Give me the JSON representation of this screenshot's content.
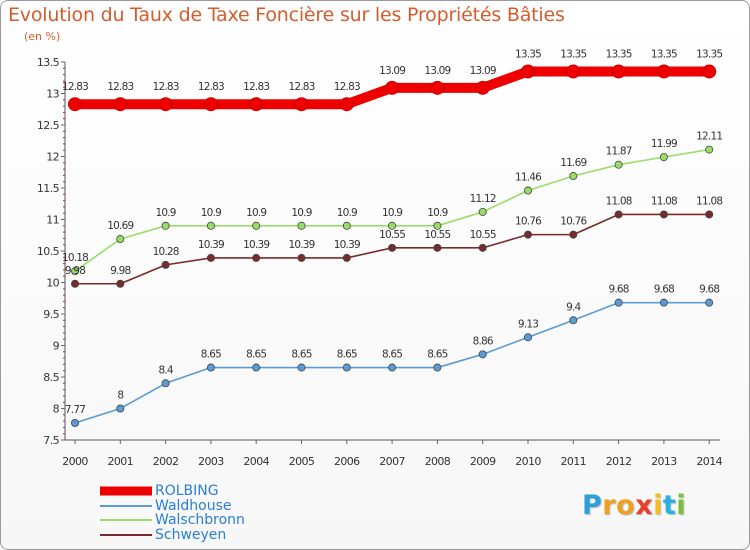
{
  "chart_data": {
    "type": "line",
    "title": "Evolution du Taux de Taxe Foncière sur les Propriétés Bâties",
    "subtitle": "(en %)",
    "x": [
      "2000",
      "2001",
      "2002",
      "2003",
      "2004",
      "2005",
      "2006",
      "2007",
      "2008",
      "2009",
      "2010",
      "2011",
      "2012",
      "2013",
      "2014"
    ],
    "ylim": [
      7.5,
      13.5
    ],
    "yticks": [
      "7.5",
      "8",
      "8.5",
      "9",
      "9.5",
      "10",
      "10.5",
      "11",
      "11.5",
      "12",
      "12.5",
      "13",
      "13.5"
    ],
    "grid": false,
    "legend_position": "bottom-left",
    "series": [
      {
        "name": "ROLBING",
        "color": "#ee0000",
        "values": [
          12.83,
          12.83,
          12.83,
          12.83,
          12.83,
          12.83,
          12.83,
          13.09,
          13.09,
          13.09,
          13.35,
          13.35,
          13.35,
          13.35,
          13.35
        ],
        "labels": [
          "12.83",
          "12.83",
          "12.83",
          "12.83",
          "12.83",
          "12.83",
          "12.83",
          "13.09",
          "13.09",
          "13.09",
          "13.35",
          "13.35",
          "13.35",
          "13.35",
          "13.35"
        ]
      },
      {
        "name": "Waldhouse",
        "color": "#5b9bd5",
        "values": [
          7.77,
          8,
          8.4,
          8.65,
          8.65,
          8.65,
          8.65,
          8.65,
          8.65,
          8.86,
          9.13,
          9.4,
          9.68,
          9.68,
          9.68
        ],
        "labels": [
          "7.77",
          "8",
          "8.4",
          "8.65",
          "8.65",
          "8.65",
          "8.65",
          "8.65",
          "8.65",
          "8.86",
          "9.13",
          "9.4",
          "9.68",
          "9.68",
          "9.68"
        ]
      },
      {
        "name": "Walschbronn",
        "color": "#99dd66",
        "values": [
          10.18,
          10.69,
          10.9,
          10.9,
          10.9,
          10.9,
          10.9,
          10.9,
          10.9,
          11.12,
          11.46,
          11.69,
          11.87,
          11.99,
          12.11
        ],
        "labels": [
          "10.18",
          "10.69",
          "10.9",
          "10.9",
          "10.9",
          "10.9",
          "10.9",
          "10.9",
          "10.9",
          "11.12",
          "11.46",
          "11.69",
          "11.87",
          "11.99",
          "12.11"
        ]
      },
      {
        "name": "Schweyen",
        "color": "#7a2a2a",
        "values": [
          9.98,
          9.98,
          10.28,
          10.39,
          10.39,
          10.39,
          10.39,
          10.55,
          10.55,
          10.55,
          10.76,
          10.76,
          11.08,
          11.08,
          11.08
        ],
        "labels": [
          "9.98",
          "9.98",
          "10.28",
          "10.39",
          "10.39",
          "10.39",
          "10.39",
          "10.55",
          "10.55",
          "10.55",
          "10.76",
          "10.76",
          "11.08",
          "11.08",
          "11.08"
        ]
      }
    ]
  },
  "legend": {
    "items": [
      {
        "label": "ROLBING",
        "color": "#ee0000"
      },
      {
        "label": "Waldhouse",
        "color": "#5b9bd5"
      },
      {
        "label": "Walschbronn",
        "color": "#99dd66"
      },
      {
        "label": "Schweyen",
        "color": "#7a2a2a"
      }
    ]
  },
  "logo": {
    "letters": [
      "P",
      "r",
      "o",
      "x",
      "i",
      "t",
      "i"
    ],
    "colors": [
      "#2a9fd8",
      "#f0a020",
      "#f0a020",
      "#e8402a",
      "#f0c020",
      "#2ab0e0",
      "#7cc040"
    ]
  }
}
